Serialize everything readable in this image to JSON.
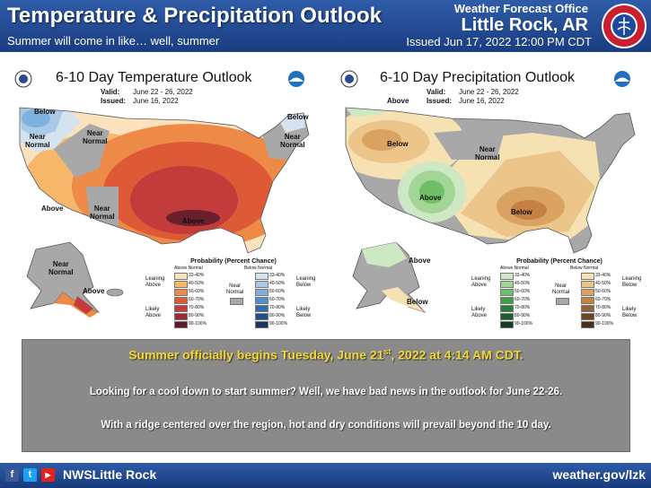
{
  "header": {
    "title": "Temperature & Precipitation Outlook",
    "subtitle": "Summer will come in like… well, summer",
    "office": "Weather Forecast Office",
    "city": "Little Rock, AR",
    "issued": "Issued Jun 17, 2022 12:00 PM CDT",
    "logo_text": "NATIONAL WEATHER SERVICE"
  },
  "temp_map": {
    "title": "6-10 Day Temperature Outlook",
    "valid_label": "Valid:",
    "valid": "June 22 - 26, 2022",
    "issued_label": "Issued:",
    "issued": "June 16, 2022",
    "labels": {
      "below_nw": "Below",
      "near_nw": "Near\nNormal",
      "near_ne": "Near\nNormal",
      "below_ne": "Below",
      "above_sw": "Above",
      "near_sw": "Near\nNormal",
      "above_center": "Above",
      "near_ak": "Near\nNormal",
      "above_ak": "Above"
    },
    "legend": {
      "title": "Probability (Percent Chance)",
      "above_header": "Above Normal",
      "below_header": "Below Normal",
      "near_label": "Near\nNormal",
      "leaning_above": "Leaning\nAbove",
      "likely_above": "Likely\nAbove",
      "leaning_below": "Leaning\nBelow",
      "likely_below": "Likely\nBelow",
      "above_bins": [
        "33-40%",
        "40-50%",
        "50-60%",
        "60-70%",
        "70-80%",
        "80-90%",
        "90-100%"
      ],
      "below_bins": [
        "33-40%",
        "40-50%",
        "50-60%",
        "60-70%",
        "70-80%",
        "80-90%",
        "90-100%"
      ],
      "above_colors": [
        "#fbe2bd",
        "#f6b76b",
        "#ee8a48",
        "#de5a36",
        "#c33b3b",
        "#9c2a34",
        "#5e1a28"
      ],
      "below_colors": [
        "#d5e3f1",
        "#a9c9e6",
        "#7fb1de",
        "#4f8fcd",
        "#2f6cb0",
        "#244f8b",
        "#1a3562"
      ]
    }
  },
  "precip_map": {
    "title": "6-10 Day Precipitation Outlook",
    "valid_label": "Valid:",
    "valid": "June 22 - 26, 2022",
    "issued_label": "Issued:",
    "issued": "June 16, 2022",
    "labels": {
      "above_nw": "Above",
      "below_nw": "Below",
      "near_center": "Near\nNormal",
      "above_west": "Above",
      "below_se": "Below",
      "above_ak": "Above",
      "below_ak": "Below"
    },
    "legend": {
      "title": "Probability (Percent Chance)",
      "above_header": "Above Normal",
      "below_header": "Below Normal",
      "near_label": "Near\nNormal",
      "leaning_above": "Leaning\nAbove",
      "likely_above": "Likely\nAbove",
      "leaning_below": "Leaning\nBelow",
      "likely_below": "Likely\nBelow",
      "above_bins": [
        "33-40%",
        "40-50%",
        "50-60%",
        "60-70%",
        "70-80%",
        "80-90%",
        "90-100%"
      ],
      "below_bins": [
        "33-40%",
        "40-50%",
        "50-60%",
        "60-70%",
        "70-80%",
        "80-90%",
        "90-100%"
      ],
      "above_colors": [
        "#cfe8c4",
        "#a3d597",
        "#6fbf67",
        "#3e9f44",
        "#2a7e36",
        "#1e5e2a",
        "#143e1d"
      ],
      "below_colors": [
        "#f6e1b3",
        "#ecc58a",
        "#dba361",
        "#c48142",
        "#9b6131",
        "#6e4426",
        "#4a2e1c"
      ]
    }
  },
  "message": {
    "headline_a": "Summer officially begins Tuesday, June 21",
    "headline_sup": "st",
    "headline_b": ", 2022 at 4:14 AM CDT.",
    "line1": "Looking for a cool down to start summer? Well, we have bad news in the outlook for June 22-26.",
    "line2": "With a ridge centered over the region, hot and dry conditions will prevail beyond the 10 day."
  },
  "footer": {
    "handle": "NWSLittle Rock",
    "website": "weather.gov/lzk",
    "social_icons": [
      "facebook-icon",
      "twitter-icon",
      "youtube-icon"
    ],
    "facebook_glyph": "f",
    "twitter_glyph": "t",
    "youtube_glyph": "▶"
  },
  "colors": {
    "header_blue": "#2f5ca8",
    "headline_yellow": "#f2d633",
    "message_box_gray": "#8a8a8a",
    "near_normal_gray": "#a8a8a8"
  }
}
